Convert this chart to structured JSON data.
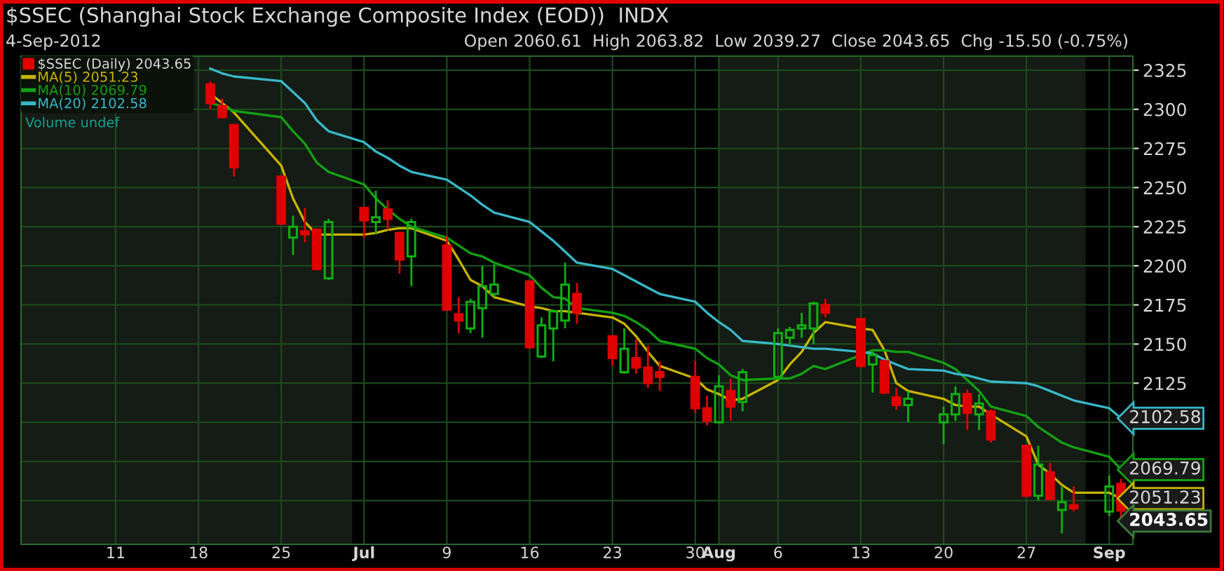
{
  "chart_data": {
    "type": "candlestick",
    "title": "$SSEC (Shanghai Stock Exchange Composite Index (EOD))  INDX",
    "subtitle": "4-Sep-2012",
    "x": [
      "2012-06-19",
      "2012-06-20",
      "2012-06-21",
      "2012-06-25",
      "2012-06-26",
      "2012-06-27",
      "2012-06-28",
      "2012-06-29",
      "2012-07-02",
      "2012-07-03",
      "2012-07-04",
      "2012-07-05",
      "2012-07-06",
      "2012-07-09",
      "2012-07-10",
      "2012-07-11",
      "2012-07-12",
      "2012-07-13",
      "2012-07-16",
      "2012-07-17",
      "2012-07-18",
      "2012-07-19",
      "2012-07-20",
      "2012-07-23",
      "2012-07-24",
      "2012-07-25",
      "2012-07-26",
      "2012-07-27",
      "2012-07-30",
      "2012-07-31",
      "2012-08-01",
      "2012-08-02",
      "2012-08-03",
      "2012-08-06",
      "2012-08-07",
      "2012-08-08",
      "2012-08-09",
      "2012-08-10",
      "2012-08-13",
      "2012-08-14",
      "2012-08-15",
      "2012-08-16",
      "2012-08-17",
      "2012-08-20",
      "2012-08-21",
      "2012-08-22",
      "2012-08-23",
      "2012-08-24",
      "2012-08-27",
      "2012-08-28",
      "2012-08-29",
      "2012-08-30",
      "2012-08-31",
      "2012-09-03",
      "2012-09-04"
    ],
    "xlim": [
      "2012-06-03",
      "2012-09-05"
    ],
    "xticks": [
      {
        "value": "2012-06-11",
        "label": "11"
      },
      {
        "value": "2012-06-18",
        "label": "18"
      },
      {
        "value": "2012-06-25",
        "label": "25"
      },
      {
        "value": "2012-07-02",
        "label": "Jul"
      },
      {
        "value": "2012-07-09",
        "label": "9"
      },
      {
        "value": "2012-07-16",
        "label": "16"
      },
      {
        "value": "2012-07-23",
        "label": "23"
      },
      {
        "value": "2012-07-30",
        "label": "30"
      },
      {
        "value": "2012-08-01",
        "label": "Aug"
      },
      {
        "value": "2012-08-06",
        "label": "6"
      },
      {
        "value": "2012-08-13",
        "label": "13"
      },
      {
        "value": "2012-08-20",
        "label": "20"
      },
      {
        "value": "2012-08-27",
        "label": "27"
      },
      {
        "value": "2012-09-03",
        "label": "Sep"
      }
    ],
    "ylim": [
      2022,
      2334
    ],
    "yticks": [
      {
        "value": 2050,
        "label": null
      },
      {
        "value": 2075,
        "label": null
      },
      {
        "value": 2100,
        "label": null
      },
      2125,
      2150,
      2175,
      2200,
      2225,
      2250,
      2275,
      2300,
      2325
    ],
    "grid": true,
    "legend": "top left",
    "bands": [
      {
        "axis": "x",
        "from": "2012-06-03",
        "to": "2012-07-01",
        "color": "#151b15"
      },
      {
        "axis": "x",
        "from": "2012-08-01",
        "to": "2012-09-01",
        "color": "#151b15"
      }
    ],
    "series": [
      {
        "name": "$SSEC (Daily) 2043.65",
        "value_labels": [
          null,
          null,
          null,
          null,
          null,
          null,
          null,
          null,
          null,
          null,
          null,
          null,
          null,
          null,
          null,
          null,
          null,
          null,
          null,
          null,
          null,
          null,
          null,
          null,
          null,
          null,
          null,
          null,
          null,
          null,
          null,
          null,
          null,
          null,
          null,
          null,
          null,
          null,
          null,
          null,
          null,
          null,
          null,
          null,
          null,
          null,
          null,
          null,
          null,
          null,
          null,
          null,
          null,
          null,
          "2043.65"
        ],
        "ohlc": [
          [
            2316,
            2318,
            2300,
            2304
          ],
          [
            2302,
            2307,
            2294,
            2295
          ],
          [
            2290,
            2290,
            2257,
            2263
          ],
          [
            2257,
            2257,
            2226,
            2227
          ],
          [
            2218,
            2232,
            2207,
            2225
          ],
          [
            2222,
            2237,
            2215,
            2220
          ],
          [
            2223,
            2224,
            2197,
            2198
          ],
          [
            2192,
            2230,
            2191,
            2228
          ],
          [
            2237,
            2237,
            2218,
            2229
          ],
          [
            2228,
            2248,
            2220,
            2231
          ],
          [
            2236,
            2242,
            2223,
            2230
          ],
          [
            2221,
            2221,
            2195,
            2204
          ],
          [
            2206,
            2230,
            2187,
            2228
          ],
          [
            2213,
            2219,
            2171,
            2172
          ],
          [
            2169,
            2180,
            2157,
            2165
          ],
          [
            2160,
            2179,
            2157,
            2177
          ],
          [
            2173,
            2200,
            2154,
            2187
          ],
          [
            2182,
            2201,
            2180,
            2188
          ],
          [
            2190,
            2190,
            2147,
            2148
          ],
          [
            2142,
            2167,
            2141,
            2162
          ],
          [
            2160,
            2172,
            2139,
            2171
          ],
          [
            2165,
            2202,
            2160,
            2188
          ],
          [
            2182,
            2189,
            2163,
            2170
          ],
          [
            2155,
            2155,
            2136,
            2141
          ],
          [
            2132,
            2160,
            2131,
            2147
          ],
          [
            2141,
            2153,
            2131,
            2135
          ],
          [
            2135,
            2149,
            2122,
            2125
          ],
          [
            2132,
            2139,
            2120,
            2129
          ],
          [
            2129,
            2139,
            2106,
            2109
          ],
          [
            2109,
            2117,
            2098,
            2101
          ],
          [
            2100,
            2130,
            2100,
            2123
          ],
          [
            2120,
            2128,
            2101,
            2110
          ],
          [
            2113,
            2134,
            2107,
            2132
          ],
          [
            2129,
            2160,
            2127,
            2157
          ],
          [
            2154,
            2161,
            2149,
            2159
          ],
          [
            2160,
            2170,
            2154,
            2162
          ],
          [
            2160,
            2177,
            2150,
            2176
          ],
          [
            2175,
            2179,
            2167,
            2170
          ],
          [
            2166,
            2166,
            2135,
            2136
          ],
          [
            2137,
            2145,
            2119,
            2143
          ],
          [
            2139,
            2140,
            2118,
            2119
          ],
          [
            2116,
            2122,
            2108,
            2111
          ],
          [
            2111,
            2120,
            2100,
            2115
          ],
          [
            2100,
            2110,
            2086,
            2105
          ],
          [
            2105,
            2123,
            2101,
            2118
          ],
          [
            2118,
            2121,
            2095,
            2106
          ],
          [
            2105,
            2118,
            2095,
            2112
          ],
          [
            2107,
            2108,
            2087,
            2089
          ],
          [
            2085,
            2085,
            2052,
            2053
          ],
          [
            2053,
            2085,
            2050,
            2073
          ],
          [
            2068,
            2074,
            2050,
            2051
          ],
          [
            2044,
            2059,
            2029,
            2049
          ],
          [
            2047,
            2059,
            2043,
            2045
          ],
          [
            2043,
            2066,
            2040,
            2059
          ],
          [
            2060.61,
            2063.82,
            2039.27,
            2043.65
          ]
        ]
      },
      {
        "name": "MA(5) 2051.23",
        "type": "line",
        "color": "#c8b400",
        "value_labels": [
          null,
          null,
          null,
          null,
          null,
          null,
          null,
          null,
          null,
          null,
          null,
          null,
          null,
          null,
          null,
          null,
          null,
          null,
          null,
          null,
          null,
          null,
          null,
          null,
          null,
          null,
          null,
          null,
          null,
          null,
          null,
          null,
          null,
          null,
          null,
          null,
          null,
          null,
          null,
          null,
          null,
          null,
          null,
          null,
          null,
          null,
          null,
          null,
          null,
          null,
          null,
          null,
          null,
          null,
          "2051.23"
        ],
        "values": [
          2310,
          2304,
          2298,
          2264,
          2243,
          2228,
          2220,
          2220,
          2220,
          2221,
          2223,
          2224,
          2224,
          2216,
          2204,
          2191,
          2187,
          2180,
          2174,
          2173,
          2171,
          2171,
          2170,
          2167,
          2163,
          2155,
          2145,
          2136,
          2128,
          2121,
          2118,
          2114,
          2115,
          2127,
          2137,
          2145,
          2157,
          2164,
          2160,
          2159,
          2146,
          2125,
          2120,
          2115,
          2111,
          2110,
          2110,
          2105,
          2091,
          2073,
          2067,
          2060,
          2055,
          2055,
          2051.23
        ]
      },
      {
        "name": "MA(10) 2069.79",
        "type": "line",
        "color": "#13a013",
        "value_labels": [
          null,
          null,
          null,
          null,
          null,
          null,
          null,
          null,
          null,
          null,
          null,
          null,
          null,
          null,
          null,
          null,
          null,
          null,
          null,
          null,
          null,
          null,
          null,
          null,
          null,
          null,
          null,
          null,
          null,
          null,
          null,
          null,
          null,
          null,
          null,
          null,
          null,
          null,
          null,
          null,
          null,
          null,
          null,
          null,
          null,
          null,
          null,
          null,
          null,
          null,
          null,
          null,
          null,
          null,
          "2069.79"
        ],
        "values": [
          2304,
          2302,
          2299,
          2295,
          2286,
          2278,
          2266,
          2260,
          2252,
          2243,
          2236,
          2230,
          2225,
          2218,
          2213,
          2208,
          2206,
          2202,
          2194,
          2186,
          2180,
          2179,
          2173,
          2170,
          2168,
          2164,
          2159,
          2152,
          2147,
          2141,
          2137,
          2130,
          2127,
          2128,
          2128,
          2131,
          2136,
          2134,
          2143,
          2146,
          2146,
          2145,
          2145,
          2138,
          2134,
          2127,
          2120,
          2110,
          2104,
          2097,
          2092,
          2087,
          2084,
          2078,
          2069.79
        ]
      },
      {
        "name": "MA(20) 2102.58",
        "type": "line",
        "color": "#38b8c8",
        "value_labels": [
          null,
          null,
          null,
          null,
          null,
          null,
          null,
          null,
          null,
          null,
          null,
          null,
          null,
          null,
          null,
          null,
          null,
          null,
          null,
          null,
          null,
          null,
          null,
          null,
          null,
          null,
          null,
          null,
          null,
          null,
          null,
          null,
          null,
          null,
          null,
          null,
          null,
          null,
          null,
          null,
          null,
          null,
          null,
          null,
          null,
          null,
          null,
          null,
          null,
          null,
          null,
          null,
          null,
          null,
          "2102.58"
        ],
        "values": [
          2326,
          2323,
          2321,
          2318,
          2311,
          2304,
          2293,
          2286,
          2279,
          2273,
          2269,
          2264,
          2260,
          2255,
          2250,
          2245,
          2239,
          2234,
          2228,
          2222,
          2216,
          2209,
          2202,
          2198,
          2194,
          2190,
          2186,
          2182,
          2177,
          2170,
          2164,
          2159,
          2152,
          2150,
          2149,
          2148,
          2147,
          2147,
          2145,
          2144,
          2140,
          2137,
          2134,
          2133,
          2131,
          2130,
          2128,
          2126,
          2125,
          2123,
          2120,
          2117,
          2114,
          2109,
          2102.58
        ]
      }
    ],
    "annotations": [
      "Open 2060.61  High 2063.82  Low 2039.27  Close 2043.65  Chg -15.50 (-0.75%)",
      "Volume undef"
    ]
  }
}
